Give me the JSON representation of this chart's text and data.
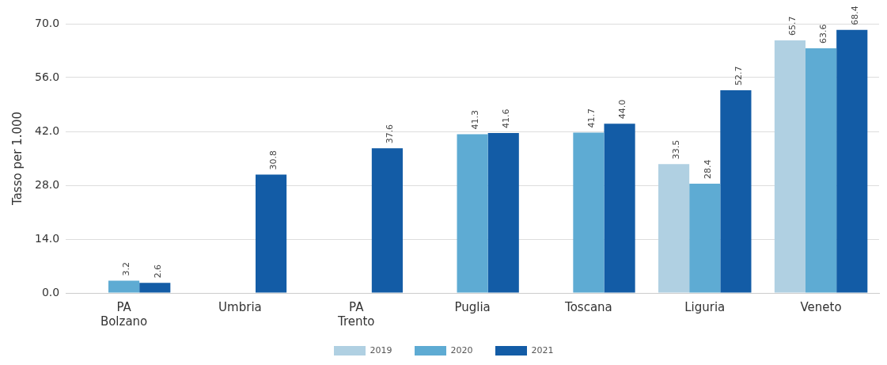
{
  "chart_data": {
    "type": "bar",
    "ylabel": "Tasso per 1.000",
    "categories": [
      "PA\nBolzano",
      "Umbria",
      "PA\nTrento",
      "Puglia",
      "Toscana",
      "Liguria",
      "Veneto"
    ],
    "series": [
      {
        "name": "2019",
        "color": "#b0d0e2",
        "values": [
          null,
          null,
          null,
          null,
          null,
          33.5,
          65.7
        ]
      },
      {
        "name": "2020",
        "color": "#5eabd3",
        "values": [
          3.2,
          null,
          null,
          41.3,
          41.7,
          28.4,
          63.6
        ]
      },
      {
        "name": "2021",
        "color": "#135ca6",
        "values": [
          2.6,
          30.8,
          37.6,
          41.6,
          44.0,
          52.7,
          68.4
        ]
      }
    ],
    "ylim": [
      0,
      70
    ],
    "yticks": [
      {
        "value": 0,
        "label": "0.0"
      },
      {
        "value": 14,
        "label": "14.0"
      },
      {
        "value": 28,
        "label": "28.0"
      },
      {
        "value": 42,
        "label": "42.0"
      },
      {
        "value": 56,
        "label": "56.0"
      },
      {
        "value": 70,
        "label": "70.0"
      }
    ],
    "grid": "y",
    "legend": "bottom",
    "value_labels": [
      [
        null,
        null,
        null,
        null,
        null,
        "33.5",
        "65.7"
      ],
      [
        "3.2",
        null,
        null,
        "41.3",
        "41.7",
        "28.4",
        "63.6"
      ],
      [
        "2.6",
        "30.8",
        "37.6",
        "41.6",
        "44.0",
        "52.7",
        "68.4"
      ]
    ]
  }
}
